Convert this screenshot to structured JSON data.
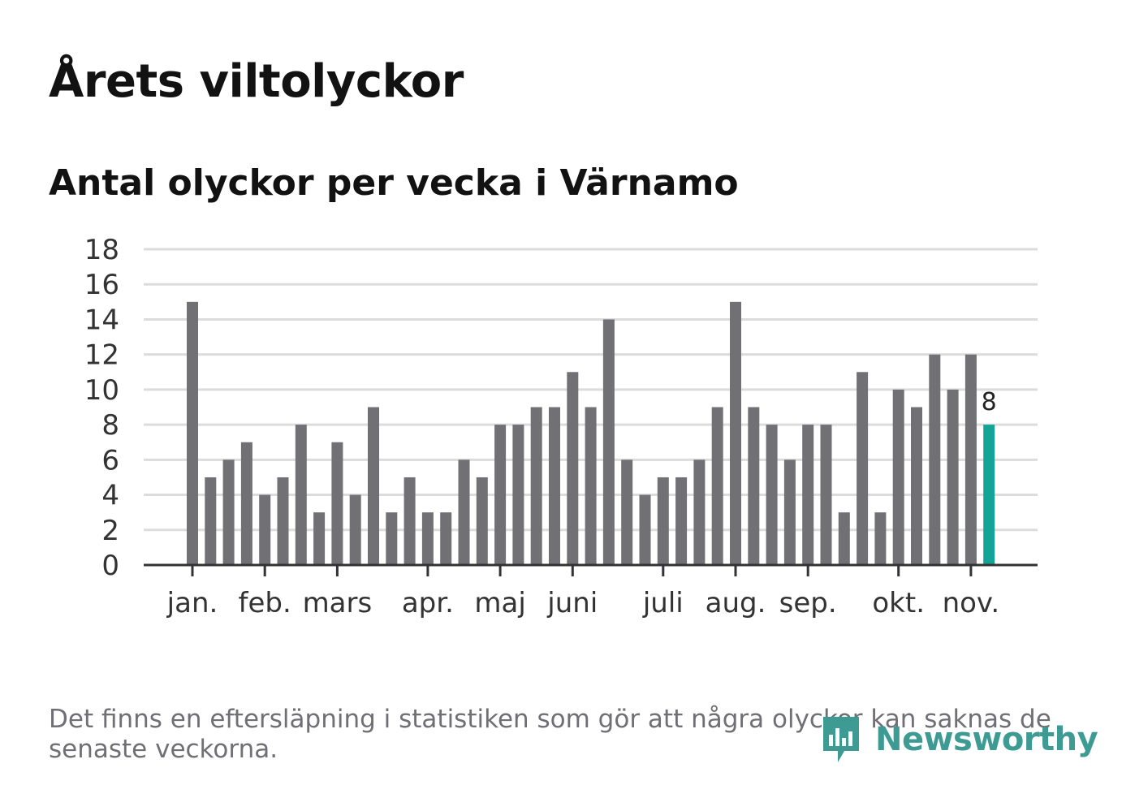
{
  "title": "Årets viltolyckor",
  "subtitle": "Antal olyckor per vecka i Värnamo",
  "footnote": "Det finns en eftersläpning i statistiken som gör att några olyckor kan saknas de senaste veckorna.",
  "logo": {
    "text": "Newsworthy",
    "icon": "newsworthy-logo-icon"
  },
  "colors": {
    "bar": "#717075",
    "highlight": "#13a397",
    "grid": "#dcdcdc",
    "axis": "#333333",
    "logo": "#3d9b93"
  },
  "chart_data": {
    "type": "bar",
    "title": "Antal olyckor per vecka i Värnamo",
    "xlabel": "",
    "ylabel": "",
    "ylim": [
      0,
      18
    ],
    "yticks": [
      0,
      2,
      4,
      6,
      8,
      10,
      12,
      14,
      16,
      18
    ],
    "grid": true,
    "values": [
      15,
      5,
      6,
      7,
      4,
      5,
      8,
      3,
      7,
      4,
      9,
      3,
      5,
      3,
      3,
      6,
      5,
      8,
      8,
      9,
      9,
      11,
      9,
      14,
      6,
      4,
      5,
      5,
      6,
      9,
      15,
      9,
      8,
      6,
      8,
      8,
      3,
      11,
      3,
      10,
      9,
      12,
      10,
      12,
      8
    ],
    "highlight_last": true,
    "highlight_label": "8",
    "month_labels": [
      {
        "label": "jan.",
        "week_index": 0
      },
      {
        "label": "feb.",
        "week_index": 4
      },
      {
        "label": "mars",
        "week_index": 8
      },
      {
        "label": "apr.",
        "week_index": 13
      },
      {
        "label": "maj",
        "week_index": 17
      },
      {
        "label": "juni",
        "week_index": 21
      },
      {
        "label": "juli",
        "week_index": 26
      },
      {
        "label": "aug.",
        "week_index": 30
      },
      {
        "label": "sep.",
        "week_index": 34
      },
      {
        "label": "okt.",
        "week_index": 39
      },
      {
        "label": "nov.",
        "week_index": 43
      }
    ]
  }
}
